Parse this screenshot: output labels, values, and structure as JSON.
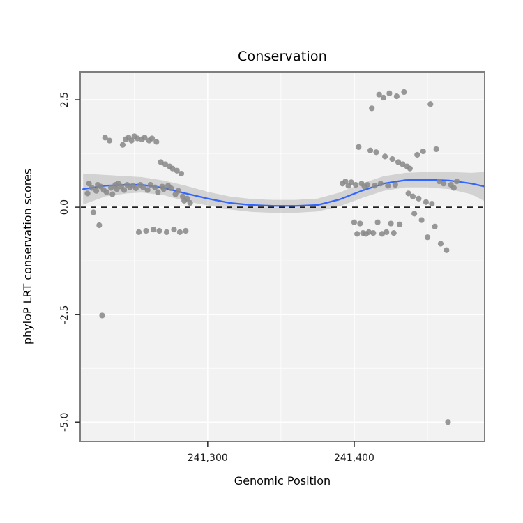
{
  "chart_data": {
    "type": "scatter",
    "title": "Conservation",
    "xlabel": "Genomic Position",
    "ylabel": "phyloP LRT conservation scores",
    "xlim": [
      241213,
      241489
    ],
    "ylim": [
      -5.45,
      3.15
    ],
    "grid": true,
    "legend": "none",
    "x_ticks": [
      {
        "value": 241300,
        "label": "241,300"
      },
      {
        "value": 241400,
        "label": "241,400"
      }
    ],
    "y_ticks": [
      {
        "value": 2.5,
        "label": "2.5"
      },
      {
        "value": 0.0,
        "label": "0.0"
      },
      {
        "value": -2.5,
        "label": "-2.5"
      },
      {
        "value": -5.0,
        "label": "-5.0"
      }
    ],
    "x_minor": [
      241250,
      241350,
      241450
    ],
    "y_minor": [
      1.25,
      -1.25,
      -3.75
    ],
    "reference_line_y": 0,
    "colors": {
      "point": "#8a8a8a",
      "smooth": "#3366FF",
      "band": "#999999",
      "panel": "#f2f2f2",
      "grid": "#ffffff",
      "reference": "#000000",
      "border": "#7f7f7f",
      "tick": "#333333",
      "tick_label": "#1a1a1a"
    },
    "points": [
      [
        241218,
        0.32
      ],
      [
        241219,
        0.55
      ],
      [
        241221,
        0.45
      ],
      [
        241222,
        -0.12
      ],
      [
        241224,
        0.38
      ],
      [
        241225,
        0.52
      ],
      [
        241226,
        -0.42
      ],
      [
        241227,
        0.48
      ],
      [
        241228,
        -2.52
      ],
      [
        241229,
        0.4
      ],
      [
        241230,
        1.62
      ],
      [
        241231,
        0.35
      ],
      [
        241233,
        1.55
      ],
      [
        241234,
        0.45
      ],
      [
        241235,
        0.3
      ],
      [
        241237,
        0.52
      ],
      [
        241238,
        0.42
      ],
      [
        241239,
        0.55
      ],
      [
        241241,
        0.48
      ],
      [
        241242,
        1.45
      ],
      [
        241243,
        0.4
      ],
      [
        241244,
        1.58
      ],
      [
        241245,
        0.52
      ],
      [
        241246,
        1.62
      ],
      [
        241247,
        0.46
      ],
      [
        241248,
        1.55
      ],
      [
        241249,
        0.5
      ],
      [
        241250,
        1.65
      ],
      [
        241251,
        0.44
      ],
      [
        241252,
        1.6
      ],
      [
        241253,
        -0.58
      ],
      [
        241254,
        0.52
      ],
      [
        241255,
        1.58
      ],
      [
        241256,
        0.46
      ],
      [
        241257,
        1.62
      ],
      [
        241258,
        -0.55
      ],
      [
        241259,
        0.4
      ],
      [
        241260,
        1.55
      ],
      [
        241261,
        0.52
      ],
      [
        241262,
        1.6
      ],
      [
        241263,
        -0.52
      ],
      [
        241264,
        0.46
      ],
      [
        241265,
        1.52
      ],
      [
        241266,
        0.35
      ],
      [
        241267,
        -0.55
      ],
      [
        241268,
        1.05
      ],
      [
        241269,
        0.48
      ],
      [
        241270,
        0.42
      ],
      [
        241271,
        1.0
      ],
      [
        241272,
        -0.58
      ],
      [
        241273,
        0.5
      ],
      [
        241274,
        0.95
      ],
      [
        241275,
        0.44
      ],
      [
        241276,
        0.9
      ],
      [
        241277,
        -0.52
      ],
      [
        241278,
        0.3
      ],
      [
        241279,
        0.85
      ],
      [
        241280,
        0.38
      ],
      [
        241281,
        -0.58
      ],
      [
        241282,
        0.78
      ],
      [
        241283,
        0.25
      ],
      [
        241284,
        0.15
      ],
      [
        241285,
        -0.55
      ],
      [
        241286,
        0.2
      ],
      [
        241288,
        0.1
      ],
      [
        241392,
        0.55
      ],
      [
        241394,
        0.6
      ],
      [
        241396,
        0.5
      ],
      [
        241398,
        0.58
      ],
      [
        241400,
        -0.35
      ],
      [
        241401,
        0.52
      ],
      [
        241402,
        -0.62
      ],
      [
        241403,
        1.4
      ],
      [
        241404,
        -0.38
      ],
      [
        241405,
        0.55
      ],
      [
        241406,
        -0.6
      ],
      [
        241407,
        0.48
      ],
      [
        241408,
        -0.62
      ],
      [
        241409,
        0.52
      ],
      [
        241410,
        -0.58
      ],
      [
        241411,
        1.32
      ],
      [
        241412,
        2.3
      ],
      [
        241413,
        -0.6
      ],
      [
        241414,
        0.5
      ],
      [
        241415,
        1.28
      ],
      [
        241416,
        -0.35
      ],
      [
        241417,
        2.62
      ],
      [
        241418,
        0.55
      ],
      [
        241419,
        -0.62
      ],
      [
        241420,
        2.55
      ],
      [
        241421,
        1.18
      ],
      [
        241422,
        -0.58
      ],
      [
        241423,
        0.5
      ],
      [
        241424,
        2.65
      ],
      [
        241425,
        -0.38
      ],
      [
        241426,
        1.12
      ],
      [
        241427,
        -0.6
      ],
      [
        241428,
        0.52
      ],
      [
        241429,
        2.58
      ],
      [
        241430,
        1.05
      ],
      [
        241431,
        -0.4
      ],
      [
        241433,
        1.0
      ],
      [
        241434,
        2.68
      ],
      [
        241436,
        0.95
      ],
      [
        241437,
        0.32
      ],
      [
        241438,
        0.9
      ],
      [
        241440,
        0.25
      ],
      [
        241441,
        -0.15
      ],
      [
        241443,
        1.22
      ],
      [
        241444,
        0.2
      ],
      [
        241446,
        -0.3
      ],
      [
        241447,
        1.3
      ],
      [
        241449,
        0.12
      ],
      [
        241450,
        -0.7
      ],
      [
        241452,
        2.4
      ],
      [
        241453,
        0.08
      ],
      [
        241455,
        -0.45
      ],
      [
        241456,
        1.35
      ],
      [
        241458,
        0.6
      ],
      [
        241459,
        -0.85
      ],
      [
        241461,
        0.55
      ],
      [
        241463,
        -1.0
      ],
      [
        241464,
        -5.0
      ],
      [
        241466,
        0.52
      ],
      [
        241468,
        0.45
      ],
      [
        241470,
        0.6
      ]
    ],
    "smooth": {
      "x": [
        241215,
        241230,
        241245,
        241255,
        241270,
        241285,
        241300,
        241315,
        241330,
        241345,
        241360,
        241375,
        241390,
        241405,
        241420,
        241435,
        241450,
        241465,
        241480,
        241489
      ],
      "y": [
        0.42,
        0.5,
        0.52,
        0.52,
        0.45,
        0.32,
        0.2,
        0.1,
        0.05,
        0.03,
        0.03,
        0.05,
        0.18,
        0.38,
        0.55,
        0.63,
        0.64,
        0.62,
        0.55,
        0.48
      ]
    },
    "band": {
      "x": [
        241215,
        241230,
        241245,
        241255,
        241270,
        241285,
        241300,
        241315,
        241330,
        241345,
        241360,
        241375,
        241390,
        241405,
        241420,
        241435,
        241450,
        241465,
        241480,
        241489
      ],
      "upper": [
        0.78,
        0.75,
        0.72,
        0.7,
        0.62,
        0.5,
        0.36,
        0.25,
        0.19,
        0.17,
        0.17,
        0.2,
        0.34,
        0.55,
        0.72,
        0.8,
        0.82,
        0.82,
        0.8,
        0.82
      ],
      "lower": [
        0.06,
        0.25,
        0.32,
        0.34,
        0.28,
        0.14,
        0.04,
        -0.05,
        -0.11,
        -0.13,
        -0.13,
        -0.1,
        0.02,
        0.21,
        0.38,
        0.46,
        0.46,
        0.42,
        0.3,
        0.14
      ]
    }
  }
}
